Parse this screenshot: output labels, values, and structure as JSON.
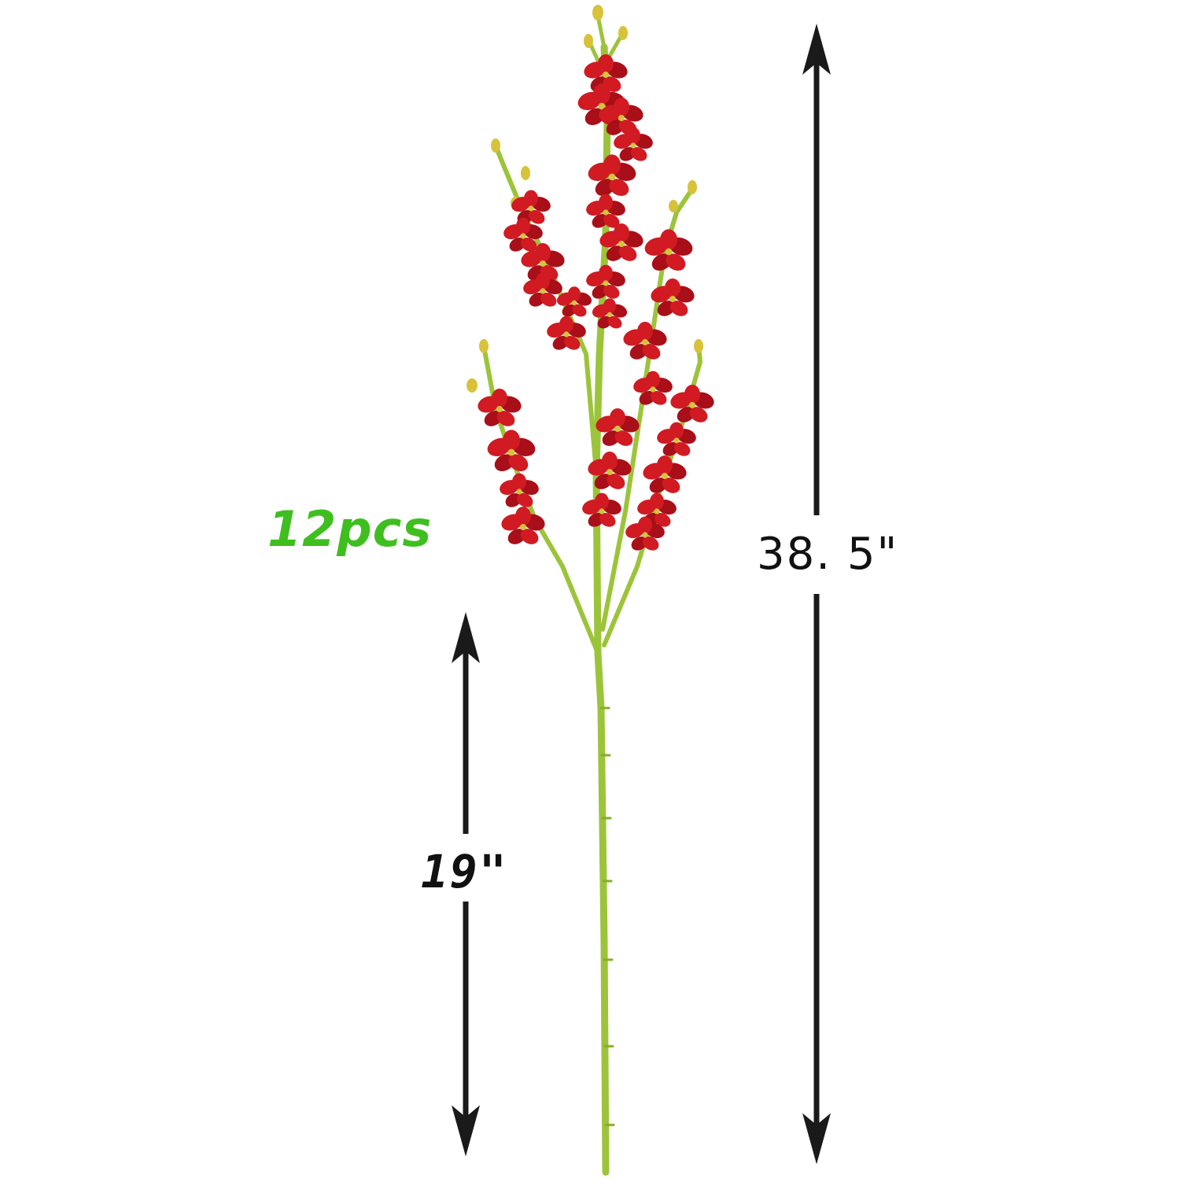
{
  "quantity_label": "12pcs",
  "dimensions": {
    "total_height_label": "38. 5\"",
    "stem_length_label": "19\""
  },
  "colors": {
    "flower": "#d11a22",
    "flower_dark": "#a80f18",
    "stem": "#9cc43a",
    "bud": "#d8c23a",
    "arrow": "#1a1a1a",
    "quantity_text": "#3fbf1f"
  }
}
